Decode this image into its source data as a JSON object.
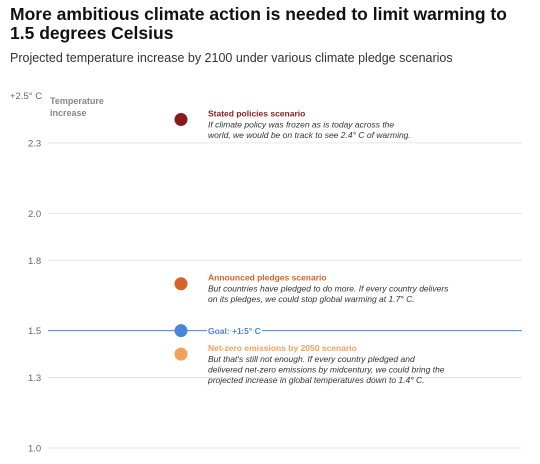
{
  "header": {
    "title": "More ambitious climate action is needed to limit warming to 1.5 degrees Celsius",
    "subtitle": "Projected temperature increase by 2100 under various climate pledge scenarios"
  },
  "chart_data": {
    "type": "scatter",
    "ylabel_lines": [
      "Temperature",
      "increase"
    ],
    "yticks": [
      {
        "value": 2.5,
        "label": "+2.5° C"
      },
      {
        "value": 2.3,
        "label": "2.3"
      },
      {
        "value": 2.0,
        "label": "2.0"
      },
      {
        "value": 1.8,
        "label": "1.8"
      },
      {
        "value": 1.5,
        "label": "1.5"
      },
      {
        "value": 1.3,
        "label": "1.3"
      },
      {
        "value": 1.0,
        "label": "1.0"
      }
    ],
    "ylim": [
      1.0,
      2.5
    ],
    "grid": true,
    "goal": {
      "value": 1.5,
      "label": "Goal: +1.5° C",
      "color": "#4a86d8"
    },
    "points": [
      {
        "name": "Stated policies scenario",
        "value": 2.4,
        "color": "#8b1a1a",
        "description": [
          "If climate policy was frozen as is today across the",
          "world, we would be on track to see 2.4° C of warming."
        ]
      },
      {
        "name": "Announced pledges scenario",
        "value": 1.7,
        "color": "#d9622b",
        "description": [
          "But countries have pledged to do more. If every country delivers",
          "on its pledges, we could stop global warming at 1.7° C."
        ]
      },
      {
        "name": "Net-zero emissions by 2050 scenario",
        "value": 1.4,
        "color": "#f5a05a",
        "description": [
          "But that's still not enough. If every country pledged and",
          "delivered net-zero emissions by midcentury, we could bring the",
          "projected increase in global temperatures down to 1.4° C."
        ]
      }
    ]
  }
}
